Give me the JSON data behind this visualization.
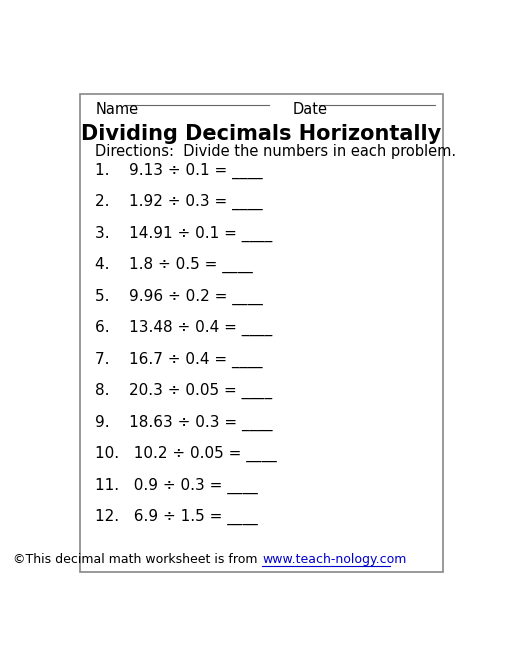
{
  "title": "Dividing Decimals Horizontally",
  "name_label": "Name",
  "date_label": "Date",
  "directions": "Directions:  Divide the numbers in each problem.",
  "problems": [
    "1.    9.13 ÷ 0.1 = ____",
    "2.    1.92 ÷ 0.3 = ____",
    "3.    14.91 ÷ 0.1 = ____",
    "4.    1.8 ÷ 0.5 = ____",
    "5.    9.96 ÷ 0.2 = ____",
    "6.    13.48 ÷ 0.4 = ____",
    "7.    16.7 ÷ 0.4 = ____",
    "8.    20.3 ÷ 0.05 = ____",
    "9.    18.63 ÷ 0.3 = ____",
    "10.   10.2 ÷ 0.05 = ____",
    "11.   0.9 ÷ 0.3 = ____",
    "12.   6.9 ÷ 1.5 = ____"
  ],
  "footer_plain": "©This decimal math worksheet is from ",
  "footer_link": "www.teach-nology.com",
  "bg_color": "#ffffff",
  "border_color": "#888888",
  "text_color": "#000000",
  "link_color": "#0000cc",
  "title_fontsize": 15,
  "directions_fontsize": 10.5,
  "problem_fontsize": 11,
  "header_fontsize": 10.5,
  "footer_fontsize": 9
}
